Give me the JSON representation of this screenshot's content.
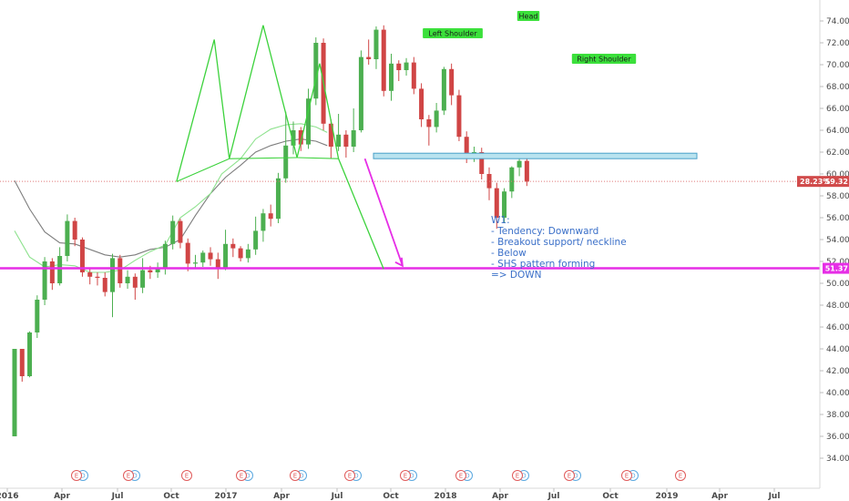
{
  "chart_data": {
    "type": "candlestick",
    "y_axis": {
      "ticks": [
        "74.00",
        "72.00",
        "70.00",
        "68.00",
        "66.00",
        "64.00",
        "62.00",
        "60.00",
        "58.00",
        "56.00",
        "54.00",
        "52.00",
        "50.00",
        "48.00",
        "46.00",
        "44.00",
        "42.00",
        "40.00",
        "38.00",
        "36.00",
        "34.00"
      ],
      "range": [
        33.5,
        75.5
      ]
    },
    "x_axis": {
      "ticks": [
        "2016",
        "Apr",
        "Jul",
        "Oct",
        "2017",
        "Apr",
        "Jul",
        "Oct",
        "2018",
        "Apr",
        "Jul",
        "Oct",
        "2019",
        "Apr",
        "Jul"
      ]
    },
    "current_price_label": "59.32",
    "current_pct_label": "28.23%",
    "support_price_label": "51.37",
    "support_level": 51.37,
    "neckline_zone": [
      61.4,
      61.9
    ],
    "pattern_labels": {
      "left_shoulder": "Left Shoulder",
      "head": "Head",
      "right_shoulder": "Right Shoulder"
    },
    "shs_pattern": [
      [
        21.5,
        59.3
      ],
      [
        26.5,
        72.3
      ],
      [
        28.5,
        61.4
      ],
      [
        33.0,
        73.6
      ],
      [
        37.5,
        61.5
      ],
      [
        40.5,
        70.1
      ],
      [
        43.0,
        61.4
      ]
    ],
    "projection_line": [
      [
        43.0,
        61.4
      ],
      [
        49.0,
        51.3
      ]
    ],
    "projection_arrow": [
      [
        46.5,
        61.4
      ],
      [
        51.5,
        51.6
      ]
    ],
    "ma_fast": [
      [
        0,
        54.8
      ],
      [
        2,
        52.4
      ],
      [
        4,
        51.5
      ],
      [
        6,
        51.7
      ],
      [
        8,
        51.6
      ],
      [
        10,
        51.0
      ],
      [
        12,
        51.0
      ],
      [
        14,
        51.2
      ],
      [
        16,
        52.1
      ],
      [
        18,
        52.9
      ],
      [
        20,
        53.5
      ],
      [
        22,
        56.0
      ],
      [
        24,
        57.0
      ],
      [
        26,
        58.2
      ],
      [
        27.5,
        60.0
      ],
      [
        30,
        61.4
      ],
      [
        32,
        63.2
      ],
      [
        34,
        64.1
      ],
      [
        36,
        64.5
      ],
      [
        38,
        64.6
      ],
      [
        40,
        64.3
      ],
      [
        41.5,
        63.8
      ]
    ],
    "ma_slow": [
      [
        0,
        59.4
      ],
      [
        2,
        56.8
      ],
      [
        4,
        54.7
      ],
      [
        6,
        53.7
      ],
      [
        8,
        53.6
      ],
      [
        10,
        53.1
      ],
      [
        12,
        52.6
      ],
      [
        14,
        52.4
      ],
      [
        16,
        52.6
      ],
      [
        18,
        53.1
      ],
      [
        20,
        53.3
      ],
      [
        22,
        54.0
      ],
      [
        24,
        56.2
      ],
      [
        26,
        58.2
      ],
      [
        28,
        59.7
      ],
      [
        30,
        60.8
      ],
      [
        32,
        62.0
      ],
      [
        34,
        62.6
      ],
      [
        36,
        63.0
      ],
      [
        38,
        63.2
      ],
      [
        40,
        63.0
      ],
      [
        41.5,
        62.6
      ]
    ],
    "candles": [
      [
        36.0,
        44.0,
        36.0,
        44.0
      ],
      [
        44.0,
        41.5,
        42.0,
        41.0
      ],
      [
        41.5,
        45.5,
        45.6,
        41.4
      ],
      [
        45.5,
        48.5,
        48.9,
        45.0
      ],
      [
        48.5,
        52.0,
        52.4,
        48.0
      ],
      [
        52.0,
        50.0,
        52.3,
        49.4
      ],
      [
        50.0,
        52.5,
        53.3,
        49.8
      ],
      [
        52.5,
        55.7,
        56.3,
        52.0
      ],
      [
        55.7,
        54.0,
        56.0,
        53.4
      ],
      [
        54.0,
        51.0,
        54.2,
        50.6
      ],
      [
        51.0,
        50.6,
        51.4,
        49.9
      ],
      [
        50.6,
        50.5,
        51.0,
        49.8
      ],
      [
        50.5,
        49.2,
        51.0,
        48.8
      ],
      [
        49.2,
        52.3,
        52.7,
        46.9
      ],
      [
        52.3,
        50.0,
        52.6,
        49.6
      ],
      [
        50.0,
        50.6,
        51.2,
        49.5
      ],
      [
        50.6,
        49.6,
        50.9,
        48.5
      ],
      [
        49.6,
        51.2,
        52.3,
        49.1
      ],
      [
        51.2,
        51.0,
        51.6,
        50.4
      ],
      [
        51.0,
        51.3,
        51.9,
        50.5
      ],
      [
        51.3,
        53.6,
        53.9,
        50.8
      ],
      [
        53.6,
        55.7,
        56.2,
        53.1
      ],
      [
        55.7,
        53.7,
        55.9,
        53.2
      ],
      [
        53.7,
        51.8,
        54.1,
        51.1
      ],
      [
        51.8,
        51.9,
        52.6,
        51.3
      ],
      [
        51.9,
        52.8,
        53.0,
        51.5
      ],
      [
        52.8,
        52.2,
        53.3,
        51.6
      ],
      [
        52.2,
        51.4,
        52.8,
        50.4
      ],
      [
        51.4,
        53.6,
        54.9,
        51.2
      ],
      [
        53.6,
        53.2,
        54.1,
        52.4
      ],
      [
        53.2,
        52.3,
        53.4,
        52.0
      ],
      [
        52.3,
        53.1,
        53.6,
        51.9
      ],
      [
        53.1,
        54.8,
        56.1,
        52.6
      ],
      [
        54.8,
        56.4,
        56.8,
        53.8
      ],
      [
        56.4,
        55.9,
        57.2,
        55.2
      ],
      [
        55.9,
        59.6,
        60.1,
        55.5
      ],
      [
        59.6,
        62.6,
        65.7,
        59.2
      ],
      [
        62.6,
        64.0,
        64.8,
        61.8
      ],
      [
        64.0,
        62.7,
        64.3,
        62.1
      ],
      [
        62.7,
        66.9,
        67.8,
        62.3
      ],
      [
        66.9,
        72.0,
        72.5,
        66.3
      ],
      [
        72.0,
        64.6,
        72.4,
        64.0
      ],
      [
        64.6,
        62.5,
        65.0,
        61.4
      ],
      [
        62.5,
        63.6,
        65.5,
        62.1
      ],
      [
        63.6,
        62.5,
        64.0,
        61.5
      ],
      [
        62.5,
        64.0,
        66.0,
        62.0
      ],
      [
        64.0,
        70.7,
        71.3,
        63.8
      ],
      [
        70.7,
        70.5,
        72.3,
        70.0
      ],
      [
        70.5,
        73.2,
        73.5,
        69.6
      ],
      [
        73.2,
        67.6,
        73.6,
        67.1
      ],
      [
        67.6,
        70.1,
        71.0,
        66.7
      ],
      [
        70.1,
        69.5,
        70.4,
        68.5
      ],
      [
        69.5,
        70.2,
        70.6,
        69.0
      ],
      [
        70.2,
        67.8,
        70.7,
        67.3
      ],
      [
        67.8,
        65.0,
        68.3,
        64.3
      ],
      [
        65.0,
        64.3,
        65.4,
        62.6
      ],
      [
        64.3,
        65.8,
        66.5,
        63.8
      ],
      [
        65.8,
        69.6,
        69.8,
        65.4
      ],
      [
        69.6,
        67.2,
        70.1,
        66.3
      ],
      [
        67.2,
        63.4,
        67.7,
        63.0
      ],
      [
        63.4,
        61.6,
        63.9,
        61.0
      ],
      [
        61.6,
        62.0,
        62.5,
        61.1
      ],
      [
        62.0,
        60.0,
        62.4,
        59.5
      ],
      [
        60.0,
        58.7,
        60.6,
        57.6
      ],
      [
        58.7,
        56.0,
        59.2,
        55.0
      ],
      [
        56.0,
        58.4,
        58.7,
        55.5
      ],
      [
        58.4,
        60.6,
        60.7,
        57.8
      ],
      [
        60.6,
        61.2,
        61.8,
        59.8
      ],
      [
        61.2,
        59.3,
        61.5,
        58.9
      ]
    ]
  }
}
